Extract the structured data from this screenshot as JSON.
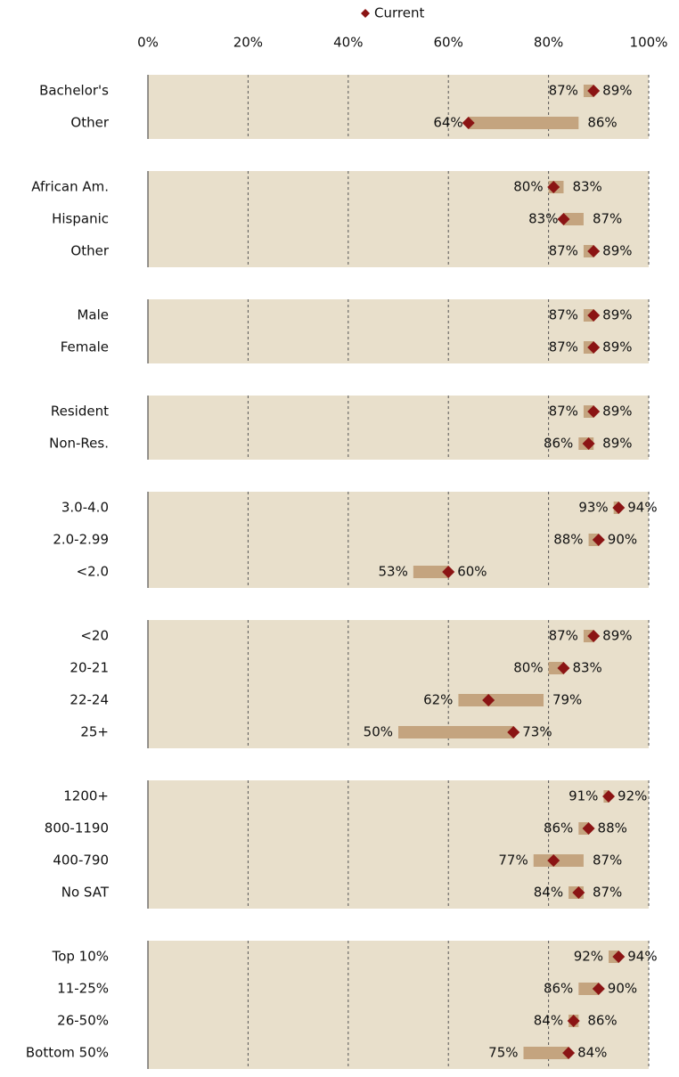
{
  "chart_data": {
    "type": "range",
    "legend": "Current",
    "current_color": "#8b1414",
    "range_color": "#c4a47f",
    "xlim": [
      0,
      100
    ],
    "xticks": [
      {
        "value": 0,
        "label": "0%"
      },
      {
        "value": 20,
        "label": "20%"
      },
      {
        "value": 40,
        "label": "40%"
      },
      {
        "value": 60,
        "label": "60%"
      },
      {
        "value": 80,
        "label": "80%"
      },
      {
        "value": 100,
        "label": "100%"
      }
    ],
    "grid": true,
    "panels": [
      {
        "categories": [
          "Bachelor's",
          "Other"
        ],
        "low": [
          87,
          64
        ],
        "low_labels": [
          "87%",
          "64%"
        ],
        "high": [
          89,
          86
        ],
        "high_labels": [
          "89%",
          "86%"
        ],
        "current": [
          89,
          64
        ]
      },
      {
        "categories": [
          "African Am.",
          "Hispanic",
          "Other"
        ],
        "low": [
          80,
          83,
          87
        ],
        "low_labels": [
          "80%",
          "83%",
          "87%"
        ],
        "high": [
          83,
          87,
          89
        ],
        "high_labels": [
          "83%",
          "87%",
          "89%"
        ],
        "current": [
          81,
          83,
          89
        ]
      },
      {
        "categories": [
          "Male",
          "Female"
        ],
        "low": [
          87,
          87
        ],
        "low_labels": [
          "87%",
          "87%"
        ],
        "high": [
          89,
          89
        ],
        "high_labels": [
          "89%",
          "89%"
        ],
        "current": [
          89,
          89
        ]
      },
      {
        "categories": [
          "Resident",
          "Non-Res."
        ],
        "low": [
          87,
          86
        ],
        "low_labels": [
          "87%",
          "86%"
        ],
        "high": [
          89,
          89
        ],
        "high_labels": [
          "89%",
          "89%"
        ],
        "current": [
          89,
          88
        ]
      },
      {
        "categories": [
          "3.0-4.0",
          "2.0-2.99",
          "<2.0"
        ],
        "low": [
          93,
          88,
          53
        ],
        "low_labels": [
          "93%",
          "88%",
          "53%"
        ],
        "high": [
          94,
          90,
          60
        ],
        "high_labels": [
          "94%",
          "90%",
          "60%"
        ],
        "current": [
          94,
          90,
          60
        ]
      },
      {
        "categories": [
          "<20",
          "20-21",
          "22-24",
          "25+"
        ],
        "low": [
          87,
          80,
          62,
          50
        ],
        "low_labels": [
          "87%",
          "80%",
          "62%",
          "50%"
        ],
        "high": [
          89,
          83,
          79,
          73
        ],
        "high_labels": [
          "89%",
          "83%",
          "79%",
          "73%"
        ],
        "current": [
          89,
          83,
          68,
          73
        ]
      },
      {
        "categories": [
          "1200+",
          "800-1190",
          "400-790",
          "No SAT"
        ],
        "low": [
          91,
          86,
          77,
          84
        ],
        "low_labels": [
          "91%",
          "86%",
          "77%",
          "84%"
        ],
        "high": [
          92,
          88,
          87,
          87
        ],
        "high_labels": [
          "92%",
          "88%",
          "87%",
          "87%"
        ],
        "current": [
          92,
          88,
          81,
          86
        ]
      },
      {
        "categories": [
          "Top 10%",
          "11-25%",
          "26-50%",
          "Bottom 50%"
        ],
        "low": [
          92,
          86,
          84,
          75
        ],
        "low_labels": [
          "92%",
          "86%",
          "84%",
          "75%"
        ],
        "high": [
          94,
          90,
          86,
          84
        ],
        "high_labels": [
          "94%",
          "90%",
          "86%",
          "84%"
        ],
        "current": [
          94,
          90,
          85,
          84
        ]
      }
    ]
  }
}
